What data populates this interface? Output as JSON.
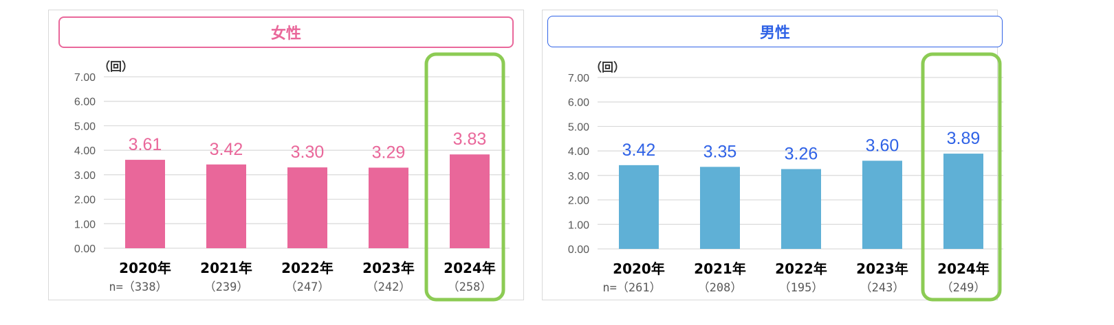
{
  "colors": {
    "female": "#E9679A",
    "male": "#5FB0D6",
    "male_label": "#2F62E6",
    "highlight": "#8CCB54",
    "grid": "#d9d9d9",
    "tick": "#595959"
  },
  "chart_data": [
    {
      "type": "bar",
      "title": "女性",
      "unit_label": "（回）",
      "categories": [
        "2020年",
        "2021年",
        "2022年",
        "2023年",
        "2024年"
      ],
      "sample_sizes": [
        "n=（338）",
        "（239）",
        "（247）",
        "（242）",
        "（258）"
      ],
      "values": [
        3.61,
        3.42,
        3.3,
        3.29,
        3.83
      ],
      "value_labels": [
        "3.61",
        "3.42",
        "3.30",
        "3.29",
        "3.83"
      ],
      "y_ticks": [
        "0.00",
        "1.00",
        "2.00",
        "3.00",
        "4.00",
        "5.00",
        "6.00",
        "7.00"
      ],
      "ylim": [
        0,
        7
      ],
      "highlighted_category": "2024年",
      "bar_color": "#E9679A",
      "label_color": "#E9679A",
      "title_color": "#E9679A"
    },
    {
      "type": "bar",
      "title": "男性",
      "unit_label": "（回）",
      "categories": [
        "2020年",
        "2021年",
        "2022年",
        "2023年",
        "2024年"
      ],
      "sample_sizes": [
        "n=（261）",
        "（208）",
        "（195）",
        "（243）",
        "（249）"
      ],
      "values": [
        3.42,
        3.35,
        3.26,
        3.6,
        3.89
      ],
      "value_labels": [
        "3.42",
        "3.35",
        "3.26",
        "3.60",
        "3.89"
      ],
      "y_ticks": [
        "0.00",
        "1.00",
        "2.00",
        "3.00",
        "4.00",
        "5.00",
        "6.00",
        "7.00"
      ],
      "ylim": [
        0,
        7
      ],
      "highlighted_category": "2024年",
      "bar_color": "#5FB0D6",
      "label_color": "#2F62E6",
      "title_color": "#2F62E6"
    }
  ]
}
